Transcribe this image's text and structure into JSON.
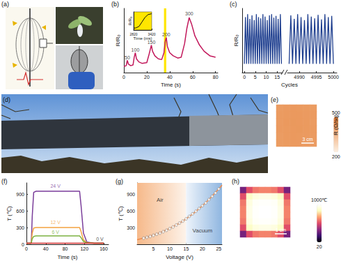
{
  "images": [
    {
      "title": "(a)"
    },
    {
      "title": "(d)"
    }
  ],
  "chart_data": [
    {
      "type": "line",
      "title": "(b)",
      "xlabel": "Time (s)",
      "ylabel": "R/R₀",
      "color": "#c2185b",
      "x": [
        0,
        2,
        3,
        4,
        6,
        8,
        9,
        10,
        11,
        13,
        16,
        20,
        22,
        24,
        25,
        27,
        30,
        33,
        35,
        36,
        37,
        38,
        40,
        43,
        47,
        50,
        53,
        55,
        57,
        59,
        62,
        66,
        70,
        75,
        80
      ],
      "values": [
        1.0,
        1.05,
        1.4,
        1.15,
        1.05,
        1.1,
        1.6,
        1.9,
        1.5,
        1.3,
        1.2,
        1.25,
        1.8,
        2.4,
        2.0,
        1.7,
        1.5,
        1.45,
        1.9,
        2.6,
        2.9,
        2.3,
        1.9,
        1.7,
        1.55,
        1.6,
        2.5,
        3.5,
        4.2,
        3.8,
        3.0,
        2.4,
        2.0,
        1.7,
        1.6
      ],
      "xlim": [
        0,
        82
      ],
      "xticks": [
        0,
        20,
        40,
        60,
        80
      ],
      "ylim": [
        0.6,
        4.8
      ],
      "tick_labels": "x",
      "annotations": [
        {
          "text": "50",
          "x": 3,
          "y": 1.6
        },
        {
          "text": "100",
          "x": 10,
          "y": 2.1
        },
        {
          "text": "150",
          "x": 24,
          "y": 2.6
        },
        {
          "text": "200",
          "x": 37,
          "y": 3.1
        },
        {
          "text": "300",
          "x": 57,
          "y": 4.45
        }
      ],
      "highlight": {
        "x": [
          35,
          37
        ],
        "color": "#ffe600"
      },
      "inset": {
        "type": "line",
        "xlabel": "Time (ms)",
        "ylabel": "R/R₀",
        "color": "#111111",
        "x": [
          2820,
          2900,
          3000,
          3100,
          3200,
          3300,
          3420
        ],
        "values": [
          0.1,
          0.12,
          0.2,
          0.45,
          0.7,
          0.85,
          0.9
        ],
        "xlim": [
          2820,
          3420
        ],
        "xticks": [
          2820,
          3420
        ],
        "ylim": [
          0,
          1
        ],
        "tick_labels": "x"
      }
    },
    {
      "type": "line",
      "title": "(c)",
      "xlabel": "Cycles",
      "ylabel": "R/R₀",
      "color": "#1f3f8f",
      "ylim": [
        0,
        1.1
      ],
      "tick_labels": "x",
      "segments": [
        {
          "x": [
            0,
            0.5,
            1,
            1.5,
            2,
            2.5,
            3,
            3.5,
            4,
            4.5,
            5,
            5.5,
            6,
            6.5,
            7,
            7.5,
            8,
            8.5,
            9,
            9.5,
            10,
            10.5,
            11,
            11.5,
            12,
            12.5,
            13,
            13.5,
            14,
            14.5,
            15,
            15.5,
            16,
            16.5,
            17
          ],
          "values": [
            0.15,
            0.95,
            0.15,
            1.0,
            0.15,
            0.92,
            0.15,
            0.98,
            0.15,
            0.9,
            0.15,
            1.0,
            0.15,
            0.95,
            0.15,
            0.93,
            0.15,
            1.0,
            0.15,
            0.96,
            0.15,
            0.9,
            0.15,
            0.98,
            0.15,
            1.0,
            0.15,
            0.94,
            0.15,
            0.97,
            0.15,
            0.92,
            0.15,
            1.0,
            0.15
          ],
          "xlim": [
            -1,
            17.5
          ],
          "xticks": [
            0,
            5,
            10,
            15
          ]
        },
        {
          "x": [
            4987,
            4987.5,
            4988,
            4988.5,
            4989,
            4989.5,
            4990,
            4990.5,
            4991,
            4991.5,
            4992,
            4992.5,
            4993,
            4993.5,
            4994,
            4994.5,
            4995,
            4995.5,
            4996,
            4996.5,
            4997,
            4997.5,
            4998,
            4998.5,
            4999,
            4999.5,
            5000
          ],
          "values": [
            0.15,
            0.98,
            0.15,
            0.92,
            0.15,
            1.0,
            0.15,
            0.95,
            0.15,
            0.9,
            0.15,
            1.0,
            0.15,
            0.96,
            0.15,
            0.93,
            0.15,
            0.99,
            0.15,
            0.91,
            0.15,
            1.0,
            0.15,
            0.95,
            0.15,
            0.97,
            0.15
          ],
          "xlim": [
            4986.5,
            5001
          ],
          "xticks": [
            4990,
            4995,
            5000
          ]
        }
      ]
    },
    {
      "type": "heatmap",
      "title": "(e)",
      "cells": [
        [
          424,
          427,
          430,
          428,
          426,
          423
        ],
        [
          426,
          429,
          431,
          430,
          427,
          425
        ],
        [
          425,
          430,
          432,
          431,
          428,
          424
        ],
        [
          427,
          429,
          431,
          432,
          429,
          426
        ],
        [
          424,
          428,
          430,
          429,
          427,
          425
        ],
        [
          423,
          426,
          428,
          427,
          425,
          422
        ]
      ],
      "colorbar": {
        "range": [
          200,
          500
        ],
        "ticks": [
          200,
          500
        ],
        "label": "R (Ω/sq)"
      },
      "scale_bar": "3 cm"
    },
    {
      "type": "line",
      "title": "(f)",
      "xlabel": "Time (s)",
      "ylabel": "T (℃)",
      "x": [
        0,
        10,
        12,
        15,
        20,
        40,
        60,
        80,
        100,
        110,
        113,
        118,
        125,
        140,
        160
      ],
      "series": [
        {
          "color": "#7a3d9a",
          "values": [
            20,
            20,
            500,
            930,
            950,
            950,
            950,
            950,
            950,
            950,
            700,
            200,
            40,
            20,
            20
          ]
        },
        {
          "color": "#f4a340",
          "values": [
            20,
            20,
            200,
            290,
            300,
            300,
            300,
            300,
            300,
            300,
            230,
            80,
            30,
            20,
            20
          ]
        },
        {
          "color": "#7cb342",
          "values": [
            20,
            20,
            100,
            140,
            150,
            150,
            150,
            150,
            150,
            150,
            120,
            50,
            25,
            20,
            20
          ]
        },
        {
          "color": "#d32f2f",
          "values": [
            20,
            20,
            20,
            20,
            20,
            20,
            20,
            20,
            20,
            20,
            20,
            20,
            20,
            20,
            20
          ]
        }
      ],
      "xlim": [
        0,
        170
      ],
      "xticks": [
        0,
        40,
        80,
        120,
        160
      ],
      "ylim": [
        0,
        1100
      ],
      "yticks": [
        0,
        300,
        600,
        900
      ],
      "annotations": [
        {
          "text": "24 V",
          "x": 60,
          "y": 1040,
          "color": "#7a3d9a"
        },
        {
          "text": "12 V",
          "x": 60,
          "y": 390,
          "color": "#f4a340"
        },
        {
          "text": "6 V",
          "x": 60,
          "y": 218,
          "color": "#7cb342"
        },
        {
          "text": "0 V",
          "x": 152,
          "y": 90,
          "color": "#222222"
        }
      ]
    },
    {
      "type": "scatter",
      "title": "(g)",
      "xlabel": "Voltage (V)",
      "ylabel": "T (℃)",
      "series": [
        {
          "type": "scatter",
          "marker": "circle",
          "color": "#ffffff",
          "x": [
            2,
            3,
            4,
            5,
            6,
            7,
            8,
            9,
            10,
            11,
            12,
            13,
            14,
            15,
            16,
            17,
            18,
            19,
            20,
            21,
            22,
            23,
            24,
            25
          ],
          "values": [
            110,
            125,
            140,
            160,
            180,
            200,
            225,
            250,
            280,
            310,
            345,
            380,
            415,
            455,
            500,
            545,
            590,
            640,
            690,
            740,
            800,
            860,
            920,
            990
          ]
        },
        {
          "type": "line",
          "color": "#f08a4b",
          "x": [
            0,
            5,
            10,
            15,
            20,
            25,
            26
          ],
          "values": [
            80,
            165,
            285,
            455,
            690,
            990,
            1060
          ]
        }
      ],
      "regions": [
        {
          "x": [
            0,
            15
          ],
          "color": "#f6b98a"
        },
        {
          "x": [
            15,
            26
          ],
          "color": "#8fb6e0"
        }
      ],
      "xlim": [
        0,
        26
      ],
      "xticks": [
        5,
        10,
        15,
        20,
        25
      ],
      "ylim": [
        0,
        1100
      ],
      "yticks": [
        300,
        600,
        900
      ],
      "annotations": [
        {
          "text": "Air",
          "x": 7,
          "y": 800
        },
        {
          "text": "Vacuum",
          "x": 20,
          "y": 250
        }
      ]
    },
    {
      "type": "heatmap",
      "title": "(h)",
      "cells": [
        [
          300,
          520,
          600,
          620,
          620,
          600,
          520,
          300
        ],
        [
          520,
          860,
          920,
          940,
          940,
          920,
          860,
          520
        ],
        [
          600,
          920,
          980,
          990,
          990,
          980,
          920,
          600
        ],
        [
          620,
          940,
          990,
          1000,
          1000,
          990,
          940,
          620
        ],
        [
          620,
          940,
          990,
          1000,
          1000,
          990,
          940,
          620
        ],
        [
          600,
          920,
          980,
          990,
          990,
          980,
          920,
          600
        ],
        [
          520,
          860,
          920,
          940,
          940,
          920,
          860,
          520
        ],
        [
          300,
          520,
          600,
          620,
          620,
          600,
          520,
          300
        ]
      ],
      "colorbar": {
        "range": [
          20,
          1000
        ],
        "ticks": [
          20,
          {
            "value": 1000,
            "label": "1000℃"
          }
        ]
      },
      "scale_bar": "1 cm"
    }
  ]
}
